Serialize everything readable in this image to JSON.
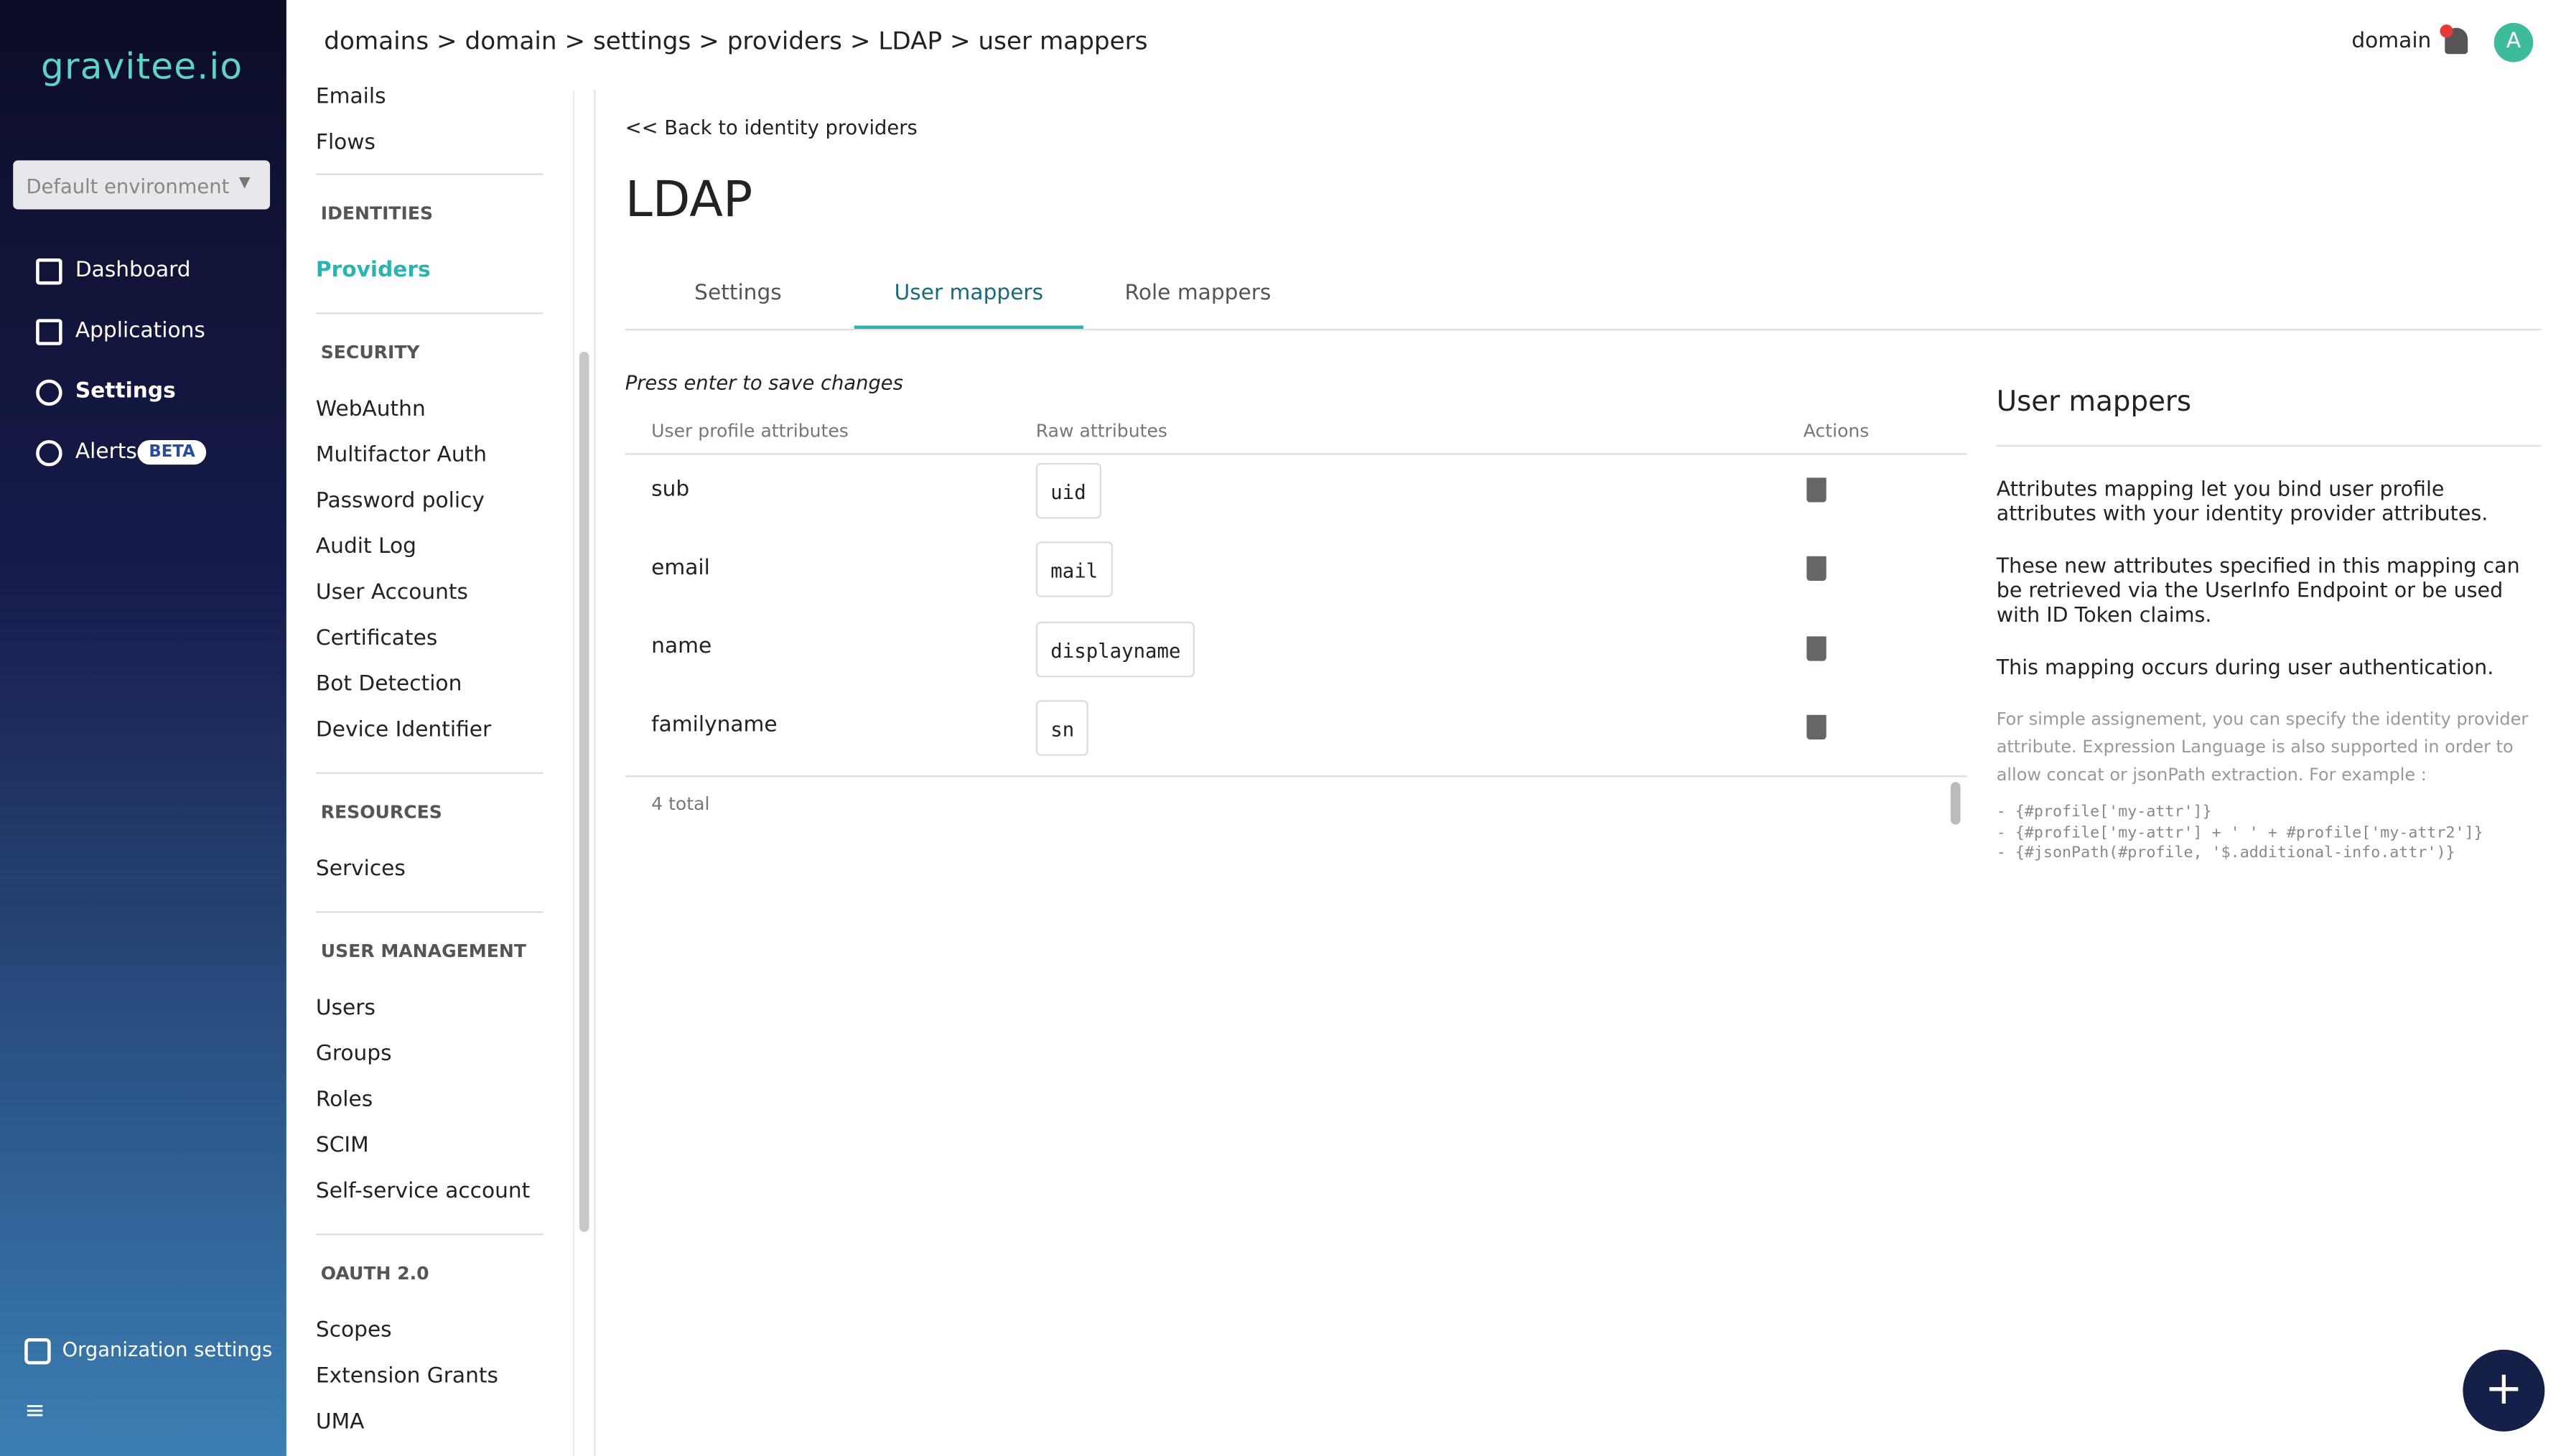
{
  "brand": "gravitee.io",
  "environment": "Default environment",
  "nav": [
    "Dashboard",
    "Applications",
    "Settings",
    "Alerts"
  ],
  "alerts_badge": "BETA",
  "org_settings": "Organization settings",
  "breadcrumb": "domains > domain > settings > providers > LDAP > user mappers",
  "user": {
    "domain": "domain",
    "avatar": "A"
  },
  "subnav": {
    "top": [
      "Emails",
      "Flows"
    ],
    "sections": [
      {
        "title": "IDENTITIES",
        "items": [
          "Providers"
        ]
      },
      {
        "title": "SECURITY",
        "items": [
          "WebAuthn",
          "Multifactor Auth",
          "Password policy",
          "Audit Log",
          "User Accounts",
          "Certificates",
          "Bot Detection",
          "Device Identifier"
        ]
      },
      {
        "title": "RESOURCES",
        "items": [
          "Services"
        ]
      },
      {
        "title": "USER MANAGEMENT",
        "items": [
          "Users",
          "Groups",
          "Roles",
          "SCIM",
          "Self-service account"
        ]
      },
      {
        "title": "OAUTH 2.0",
        "items": [
          "Scopes",
          "Extension Grants",
          "UMA"
        ]
      }
    ]
  },
  "back": "<< Back to identity providers",
  "title": "LDAP",
  "tabs": [
    "Settings",
    "User mappers",
    "Role mappers"
  ],
  "hint": "Press enter to save changes",
  "table": {
    "headers": [
      "User profile attributes",
      "Raw attributes",
      "Actions"
    ],
    "rows": [
      [
        "sub",
        "uid"
      ],
      [
        "email",
        "mail"
      ],
      [
        "name",
        "displayname"
      ],
      [
        "familyname",
        "sn"
      ]
    ],
    "total": "4 total"
  },
  "help": {
    "title": "User mappers",
    "paragraphs": [
      "Attributes mapping let you bind user profile attributes with your identity provider attributes.",
      "These new attributes specified in this mapping can be retrieved via the UserInfo Endpoint or be used with ID Token claims.",
      "This mapping occurs during user authentication."
    ],
    "note": "For simple assignement, you can specify the identity provider attribute. Expression Language is also supported in order to allow concat or jsonPath extraction. For example :",
    "examples": [
      "- {#profile['my-attr']}",
      "- {#profile['my-attr'] + ' ' + #profile['my-attr2']}",
      "- {#jsonPath(#profile, '$.additional-info.attr')}"
    ]
  }
}
